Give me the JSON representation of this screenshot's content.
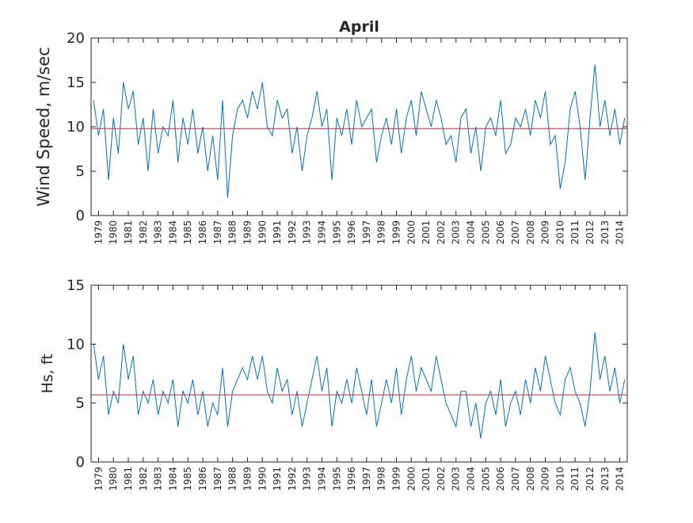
{
  "chart_data": [
    {
      "type": "line",
      "title": "April",
      "ylabel": "Wind Speed, m/sec",
      "xlim": [
        0,
        36
      ],
      "ylim": [
        0,
        20
      ],
      "yticks": [
        0,
        5,
        10,
        15,
        20
      ],
      "xticks": [
        {
          "value": 0.5,
          "label": "1979"
        },
        {
          "value": 1.5,
          "label": "1980"
        },
        {
          "value": 2.5,
          "label": "1981"
        },
        {
          "value": 3.5,
          "label": "1982"
        },
        {
          "value": 4.5,
          "label": "1983"
        },
        {
          "value": 5.5,
          "label": "1984"
        },
        {
          "value": 6.5,
          "label": "1985"
        },
        {
          "value": 7.5,
          "label": "1986"
        },
        {
          "value": 8.5,
          "label": "1987"
        },
        {
          "value": 9.5,
          "label": "1988"
        },
        {
          "value": 10.5,
          "label": "1989"
        },
        {
          "value": 11.5,
          "label": "1990"
        },
        {
          "value": 12.5,
          "label": "1991"
        },
        {
          "value": 13.5,
          "label": "1992"
        },
        {
          "value": 14.5,
          "label": "1993"
        },
        {
          "value": 15.5,
          "label": "1994"
        },
        {
          "value": 16.5,
          "label": "1995"
        },
        {
          "value": 17.5,
          "label": "1996"
        },
        {
          "value": 18.5,
          "label": "1997"
        },
        {
          "value": 19.5,
          "label": "1998"
        },
        {
          "value": 20.5,
          "label": "1999"
        },
        {
          "value": 21.5,
          "label": "2000"
        },
        {
          "value": 22.5,
          "label": "2001"
        },
        {
          "value": 23.5,
          "label": "2002"
        },
        {
          "value": 24.5,
          "label": "2003"
        },
        {
          "value": 25.5,
          "label": "2004"
        },
        {
          "value": 26.5,
          "label": "2005"
        },
        {
          "value": 27.5,
          "label": "2006"
        },
        {
          "value": 28.5,
          "label": "2007"
        },
        {
          "value": 29.5,
          "label": "2008"
        },
        {
          "value": 30.5,
          "label": "2009"
        },
        {
          "value": 31.5,
          "label": "2010"
        },
        {
          "value": 32.5,
          "label": "2011"
        },
        {
          "value": 33.5,
          "label": "2012"
        },
        {
          "value": 34.5,
          "label": "2013"
        },
        {
          "value": 35.5,
          "label": "2014"
        }
      ],
      "x": [
        0.17,
        0.5,
        0.83,
        1.17,
        1.5,
        1.83,
        2.17,
        2.5,
        2.83,
        3.17,
        3.5,
        3.83,
        4.17,
        4.5,
        4.83,
        5.17,
        5.5,
        5.83,
        6.17,
        6.5,
        6.83,
        7.17,
        7.5,
        7.83,
        8.17,
        8.5,
        8.83,
        9.17,
        9.5,
        9.83,
        10.17,
        10.5,
        10.83,
        11.17,
        11.5,
        11.83,
        12.17,
        12.5,
        12.83,
        13.17,
        13.5,
        13.83,
        14.17,
        14.5,
        14.83,
        15.17,
        15.5,
        15.83,
        16.17,
        16.5,
        16.83,
        17.17,
        17.5,
        17.83,
        18.17,
        18.5,
        18.83,
        19.17,
        19.5,
        19.83,
        20.17,
        20.5,
        20.83,
        21.17,
        21.5,
        21.83,
        22.17,
        22.5,
        22.83,
        23.17,
        23.5,
        23.83,
        24.17,
        24.5,
        24.83,
        25.17,
        25.5,
        25.83,
        26.17,
        26.5,
        26.83,
        27.17,
        27.5,
        27.83,
        28.17,
        28.5,
        28.83,
        29.17,
        29.5,
        29.83,
        30.17,
        30.5,
        30.83,
        31.17,
        31.5,
        31.83,
        32.17,
        32.5,
        32.83,
        33.17,
        33.5,
        33.83,
        34.17,
        34.5,
        34.83,
        35.17,
        35.5,
        35.83
      ],
      "series": [
        {
          "color": "#0072bd",
          "values": [
            13,
            9,
            12,
            4,
            11,
            7,
            15,
            12,
            14,
            8,
            11,
            5,
            12,
            7,
            10,
            9,
            13,
            6,
            11,
            8,
            12,
            7,
            10,
            5,
            9,
            4,
            13,
            2,
            9,
            12,
            13,
            11,
            14,
            12,
            15,
            10,
            9,
            13,
            11,
            12,
            7,
            10,
            5,
            9,
            11,
            14,
            10,
            12,
            4,
            11,
            9,
            12,
            8,
            13,
            10,
            11,
            12,
            6,
            9,
            11,
            8,
            12,
            7,
            11,
            13,
            9,
            14,
            12,
            10,
            13,
            11,
            8,
            9,
            6,
            11,
            12,
            7,
            10,
            5,
            10,
            11,
            9,
            13,
            7,
            8,
            11,
            10,
            12,
            9,
            13,
            11,
            14,
            8,
            9,
            3,
            6,
            12,
            14,
            10,
            4,
            11,
            17,
            10,
            13,
            9,
            12,
            8,
            11
          ]
        }
      ],
      "mean_line": {
        "value": 9.8,
        "color": "#d62728"
      }
    },
    {
      "type": "line",
      "ylabel": "Hs, ft",
      "xlim": [
        0,
        36
      ],
      "ylim": [
        0,
        15
      ],
      "yticks": [
        0,
        5,
        10,
        15
      ],
      "xticks": [
        {
          "value": 0.5,
          "label": "1979"
        },
        {
          "value": 1.5,
          "label": "1980"
        },
        {
          "value": 2.5,
          "label": "1981"
        },
        {
          "value": 3.5,
          "label": "1982"
        },
        {
          "value": 4.5,
          "label": "1983"
        },
        {
          "value": 5.5,
          "label": "1984"
        },
        {
          "value": 6.5,
          "label": "1985"
        },
        {
          "value": 7.5,
          "label": "1986"
        },
        {
          "value": 8.5,
          "label": "1987"
        },
        {
          "value": 9.5,
          "label": "1988"
        },
        {
          "value": 10.5,
          "label": "1989"
        },
        {
          "value": 11.5,
          "label": "1990"
        },
        {
          "value": 12.5,
          "label": "1991"
        },
        {
          "value": 13.5,
          "label": "1992"
        },
        {
          "value": 14.5,
          "label": "1993"
        },
        {
          "value": 15.5,
          "label": "1994"
        },
        {
          "value": 16.5,
          "label": "1995"
        },
        {
          "value": 17.5,
          "label": "1996"
        },
        {
          "value": 18.5,
          "label": "1997"
        },
        {
          "value": 19.5,
          "label": "1998"
        },
        {
          "value": 20.5,
          "label": "1999"
        },
        {
          "value": 21.5,
          "label": "2000"
        },
        {
          "value": 22.5,
          "label": "2001"
        },
        {
          "value": 23.5,
          "label": "2002"
        },
        {
          "value": 24.5,
          "label": "2003"
        },
        {
          "value": 25.5,
          "label": "2004"
        },
        {
          "value": 26.5,
          "label": "2005"
        },
        {
          "value": 27.5,
          "label": "2006"
        },
        {
          "value": 28.5,
          "label": "2007"
        },
        {
          "value": 29.5,
          "label": "2008"
        },
        {
          "value": 30.5,
          "label": "2009"
        },
        {
          "value": 31.5,
          "label": "2010"
        },
        {
          "value": 32.5,
          "label": "2011"
        },
        {
          "value": 33.5,
          "label": "2012"
        },
        {
          "value": 34.5,
          "label": "2013"
        },
        {
          "value": 35.5,
          "label": "2014"
        }
      ],
      "x": [
        0.17,
        0.5,
        0.83,
        1.17,
        1.5,
        1.83,
        2.17,
        2.5,
        2.83,
        3.17,
        3.5,
        3.83,
        4.17,
        4.5,
        4.83,
        5.17,
        5.5,
        5.83,
        6.17,
        6.5,
        6.83,
        7.17,
        7.5,
        7.83,
        8.17,
        8.5,
        8.83,
        9.17,
        9.5,
        9.83,
        10.17,
        10.5,
        10.83,
        11.17,
        11.5,
        11.83,
        12.17,
        12.5,
        12.83,
        13.17,
        13.5,
        13.83,
        14.17,
        14.5,
        14.83,
        15.17,
        15.5,
        15.83,
        16.17,
        16.5,
        16.83,
        17.17,
        17.5,
        17.83,
        18.17,
        18.5,
        18.83,
        19.17,
        19.5,
        19.83,
        20.17,
        20.5,
        20.83,
        21.17,
        21.5,
        21.83,
        22.17,
        22.5,
        22.83,
        23.17,
        23.5,
        23.83,
        24.17,
        24.5,
        24.83,
        25.17,
        25.5,
        25.83,
        26.17,
        26.5,
        26.83,
        27.17,
        27.5,
        27.83,
        28.17,
        28.5,
        28.83,
        29.17,
        29.5,
        29.83,
        30.17,
        30.5,
        30.83,
        31.17,
        31.5,
        31.83,
        32.17,
        32.5,
        32.83,
        33.17,
        33.5,
        33.83,
        34.17,
        34.5,
        34.83,
        35.17,
        35.5,
        35.83
      ],
      "series": [
        {
          "color": "#0072bd",
          "values": [
            10,
            7,
            9,
            4,
            6,
            5,
            10,
            7,
            9,
            4,
            6,
            5,
            7,
            4,
            6,
            5,
            7,
            3,
            6,
            5,
            7,
            4,
            6,
            3,
            5,
            4,
            8,
            3,
            6,
            7,
            8,
            7,
            9,
            7,
            9,
            6,
            5,
            8,
            6,
            7,
            4,
            6,
            3,
            5,
            7,
            9,
            6,
            8,
            3,
            6,
            5,
            7,
            5,
            8,
            6,
            4,
            7,
            3,
            5,
            7,
            5,
            8,
            4,
            7,
            9,
            6,
            8,
            7,
            6,
            9,
            7,
            5,
            4,
            3,
            6,
            6,
            3,
            5,
            2,
            5,
            6,
            4,
            7,
            3,
            5,
            6,
            4,
            7,
            5,
            8,
            6,
            9,
            7,
            5,
            4,
            7,
            8,
            6,
            5,
            3,
            6,
            11,
            7,
            9,
            6,
            8,
            5,
            7
          ]
        }
      ],
      "mean_line": {
        "value": 5.7,
        "color": "#d62728"
      }
    }
  ]
}
